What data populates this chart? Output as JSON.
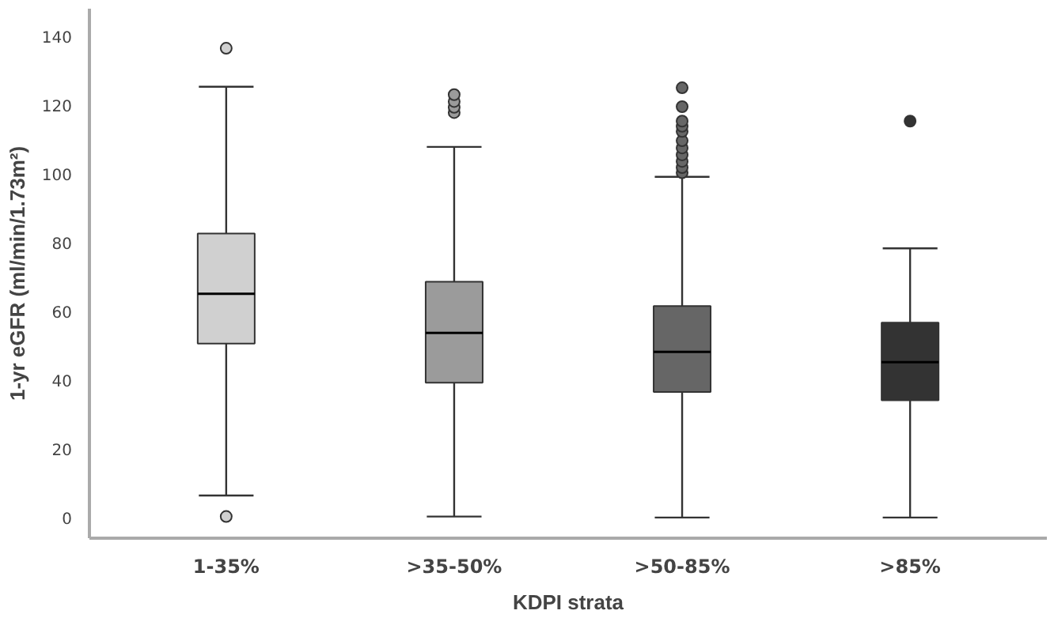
{
  "chart_data": {
    "type": "box",
    "xlabel": "KDPI strata",
    "ylabel": "1-yr eGFR (ml/min/1.73m²)",
    "categories": [
      "1-35%",
      ">35-50%",
      ">50-85%",
      ">85%"
    ],
    "colors": [
      "#d0d0d0",
      "#9b9b9b",
      "#666666",
      "#333333"
    ],
    "boxes": [
      {
        "low": 6.4,
        "q1": 50.6,
        "median": 65.1,
        "q3": 82.6,
        "high": 125.3,
        "outliers": [
          136.5,
          0.3
        ]
      },
      {
        "low": 0.3,
        "q1": 39.2,
        "median": 53.7,
        "q3": 68.6,
        "high": 107.8,
        "outliers": [
          117.8,
          119.3,
          121,
          123
        ]
      },
      {
        "low": 0,
        "q1": 36.5,
        "median": 48.2,
        "q3": 61.5,
        "high": 99.1,
        "outliers": [
          100.3,
          101.8,
          103.6,
          105.5,
          107.5,
          109.6,
          112.3,
          113.8,
          115.3,
          119.5,
          125
        ]
      },
      {
        "low": 0,
        "q1": 34.1,
        "median": 45.2,
        "q3": 56.7,
        "high": 78.3,
        "outliers": [
          115.3
        ]
      }
    ],
    "ylim": [
      -6,
      148
    ],
    "yticks": [
      0,
      20,
      40,
      60,
      80,
      100,
      120,
      140
    ],
    "grid": false,
    "marker": "circle"
  }
}
